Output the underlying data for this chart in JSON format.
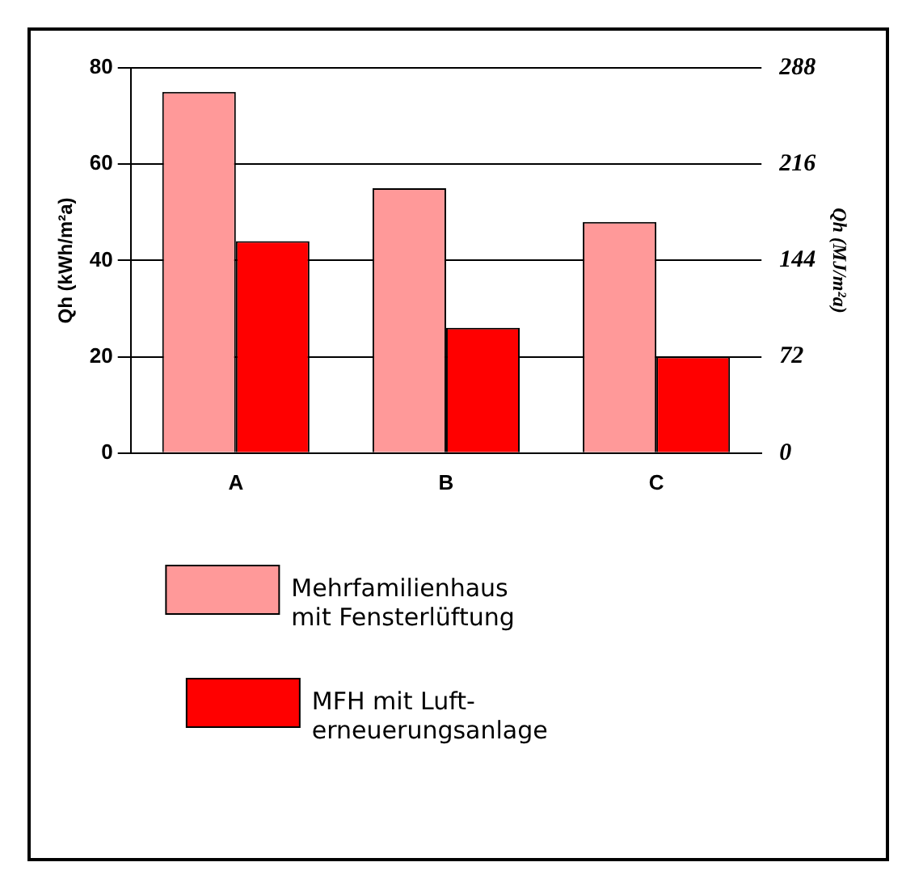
{
  "chart_data": {
    "type": "bar",
    "ylabel": "Qh (kWh/m²a)",
    "y2label": "Qh (MJ/m²a)",
    "categories": [
      "A",
      "B",
      "C"
    ],
    "series": [
      {
        "name": "Mehrfamilienhaus\nmit Fensterlüftung",
        "color": "#ff9999",
        "values": [
          75,
          55,
          48
        ]
      },
      {
        "name": "MFH mit Luft-\nerneuerungsanlage",
        "color": "#ff0000",
        "values": [
          44,
          26,
          20
        ]
      }
    ],
    "ylim": [
      0,
      80
    ],
    "yticks": [
      0,
      20,
      40,
      60,
      80
    ],
    "y2lim": [
      0,
      288
    ],
    "y2ticks": [
      0,
      72,
      144,
      216,
      288
    ],
    "grid": "y",
    "legend": "bottom"
  }
}
